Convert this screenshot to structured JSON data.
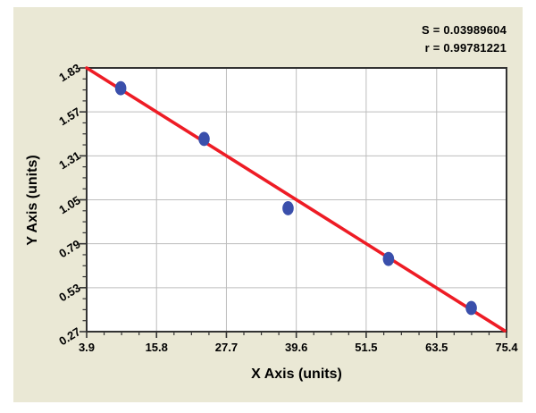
{
  "stats": {
    "s_line": "S = 0.03989604",
    "r_line": "r = 0.99781221"
  },
  "chart_data": {
    "type": "scatter",
    "title": "",
    "xlabel": "X Axis (units)",
    "ylabel": "Y Axis (units)",
    "xlim": [
      3.9,
      75.4
    ],
    "ylim": [
      0.27,
      1.83
    ],
    "x_ticks": [
      "3.9",
      "15.8",
      "27.7",
      "39.6",
      "51.5",
      "63.5",
      "75.4"
    ],
    "y_ticks": [
      "0.27",
      "0.53",
      "0.79",
      "1.05",
      "1.31",
      "1.57",
      "1.83"
    ],
    "minor_ticks_per_interval": 3,
    "grid": true,
    "legend": "none",
    "points": [
      {
        "x": 9.7,
        "y": 1.71
      },
      {
        "x": 23.9,
        "y": 1.41
      },
      {
        "x": 38.2,
        "y": 1.0
      },
      {
        "x": 55.3,
        "y": 0.7
      },
      {
        "x": 69.4,
        "y": 0.41
      }
    ],
    "fit_line": {
      "x1": 3.9,
      "y1": 1.83,
      "x2": 75.1,
      "y2": 0.275
    },
    "annotations": [
      "S = 0.03989604",
      "r = 0.99781221"
    ],
    "colors": {
      "background": "#EAE8D5",
      "plot_bg": "#FFFFFF",
      "grid": "#BDBDBD",
      "frame": "#333333",
      "line": "#EE1C25",
      "point": "#3A4FAB",
      "text": "#000000"
    }
  }
}
